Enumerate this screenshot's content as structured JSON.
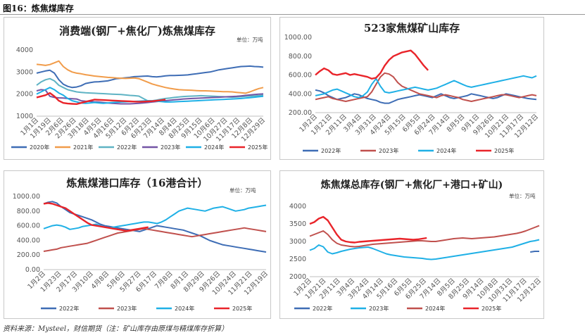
{
  "figure_title": "图16：炼焦煤库存",
  "source": "资料来源：Mysteel，财信期货（注：矿山库存由原煤与精煤库存折算）",
  "chart_data": [
    {
      "id": "p1",
      "type": "line",
      "title": "消费端(钢厂+焦化厂)炼焦煤库存",
      "unit": "单位：万吨",
      "ylim": [
        1000,
        4000
      ],
      "yticks": [
        1000,
        2000,
        3000,
        4000
      ],
      "ytick_labels": [
        "1000",
        "2000",
        "3000",
        "4000"
      ],
      "x_count": 52,
      "xtick_labels": [
        "1月1日",
        "1月19日",
        "2月6日",
        "2月26日",
        "3月18日",
        "4月5日",
        "4月16日",
        "5月12日",
        "6月2日",
        "6月23日",
        "7月14日",
        "8月4日",
        "8月25日",
        "9月15日",
        "10月6日",
        "10月27日",
        "11月17日",
        "12月8日",
        "12月29日"
      ],
      "series": [
        {
          "name": "2020年",
          "color": "#3e6db5",
          "values": [
            2950,
            3000,
            3050,
            3080,
            2950,
            2650,
            2450,
            2350,
            2300,
            2320,
            2380,
            2480,
            2520,
            2550,
            2560,
            2580,
            2600,
            2650,
            2700,
            2720,
            2740,
            2760,
            2790,
            2800,
            2810,
            2820,
            2790,
            2780,
            2800,
            2830,
            2840,
            2840,
            2850,
            2860,
            2870,
            2900,
            2920,
            2950,
            2980,
            3000,
            3050,
            3100,
            3130,
            3160,
            3190,
            3220,
            3250,
            3260,
            3270,
            3250,
            3240,
            3220
          ]
        },
        {
          "name": "2021年",
          "color": "#f19c4a",
          "values": [
            3350,
            3330,
            3300,
            3340,
            3420,
            3500,
            3250,
            3100,
            3000,
            2950,
            2920,
            2880,
            2850,
            2820,
            2800,
            2780,
            2760,
            2750,
            2730,
            2720,
            2710,
            2720,
            2730,
            2700,
            2620,
            2540,
            2460,
            2400,
            2350,
            2300,
            2260,
            2230,
            2200,
            2190,
            2180,
            2170,
            2160,
            2150,
            2150,
            2140,
            2130,
            2120,
            2110,
            2110,
            2100,
            2080,
            2060,
            2040,
            2100,
            2180,
            2250,
            2300
          ]
        },
        {
          "name": "2022年",
          "color": "#5fb3c4",
          "values": [
            2400,
            2550,
            2650,
            2700,
            2600,
            2400,
            2300,
            2200,
            2150,
            2100,
            2080,
            2060,
            2050,
            2040,
            2030,
            2020,
            2010,
            2000,
            1990,
            1980,
            1960,
            1940,
            1930,
            1910,
            1800,
            1700,
            1700,
            1730,
            1770,
            1800,
            1820,
            1850,
            1870,
            1890,
            1900,
            1910,
            1920,
            1930,
            1920,
            1910,
            1900,
            1890,
            1880,
            1870,
            1860,
            1870,
            1880,
            1900,
            1910,
            1920,
            1930,
            1950
          ]
        },
        {
          "name": "2023年",
          "color": "#7455a5",
          "values": [
            2150,
            2200,
            2180,
            1900,
            1850,
            1830,
            1820,
            1800,
            1790,
            1780,
            1700,
            1680,
            1670,
            1650,
            1640,
            1620,
            1600,
            1580,
            1570,
            1560,
            1560,
            1560,
            1570,
            1580,
            1600,
            1620,
            1640,
            1660,
            1680,
            1700,
            1720,
            1740,
            1760,
            1780,
            1790,
            1800,
            1810,
            1820,
            1830,
            1840,
            1850,
            1860,
            1870,
            1880,
            1890,
            1900,
            1920,
            1940,
            1960,
            1980,
            2000,
            2010
          ]
        },
        {
          "name": "2024年",
          "color": "#1fb0e6",
          "values": [
            2000,
            2100,
            2200,
            2300,
            2200,
            2050,
            1950,
            1800,
            1700,
            1650,
            1600,
            1580,
            1600,
            1620,
            1600,
            1580,
            1600,
            1620,
            1630,
            1640,
            1650,
            1660,
            1670,
            1680,
            1690,
            1700,
            1700,
            1680,
            1660,
            1640,
            1640,
            1650,
            1660,
            1670,
            1680,
            1690,
            1700,
            1710,
            1720,
            1730,
            1740,
            1750,
            1760,
            1770,
            1780,
            1790,
            1800,
            1820,
            1840,
            1860,
            1880,
            1900
          ]
        },
        {
          "name": "2025年",
          "color": "#e9242a",
          "values": [
            1850,
            1900,
            1950,
            2050,
            1900,
            1700,
            1600,
            1570,
            1560,
            1550,
            1600,
            1650,
            1700,
            1750,
            1740,
            1730,
            1720,
            1710,
            1700,
            1690,
            1680,
            1670,
            1660,
            1650,
            1660,
            1670,
            1680,
            1700,
            1720,
            1750
          ]
        }
      ]
    },
    {
      "id": "p2",
      "type": "line",
      "title": "523家焦煤矿山库存",
      "unit": "单位：万吨",
      "ylim": [
        200,
        1000
      ],
      "yticks": [
        200,
        400,
        600,
        800,
        1000
      ],
      "ytick_labels": [
        "200.00",
        "400.00",
        "600.00",
        "800.00",
        "1000.00"
      ],
      "x_count": 52,
      "xtick_labels": [
        "1月2日",
        "1月21日",
        "2月11日",
        "3月4日",
        "3月31日",
        "4月24日",
        "5月15日",
        "6月5日",
        "6月24日",
        "7月14日",
        "8月5日",
        "9月1日",
        "9月26日",
        "10月21日",
        "11月17日",
        "12月12日"
      ],
      "series": [
        {
          "name": "2022年",
          "color": "#3e6db5",
          "values": [
            440,
            430,
            410,
            380,
            360,
            340,
            350,
            360,
            380,
            400,
            390,
            370,
            350,
            340,
            330,
            310,
            300,
            300,
            320,
            340,
            350,
            360,
            370,
            380,
            390,
            380,
            370,
            360,
            380,
            400,
            380,
            360,
            350,
            360,
            370,
            380,
            400,
            390,
            380,
            370,
            360,
            350,
            360,
            380,
            400,
            390,
            380,
            370,
            360,
            350,
            345,
            340
          ]
        },
        {
          "name": "2023年",
          "color": "#c0504d",
          "values": [
            340,
            350,
            360,
            370,
            350,
            340,
            330,
            320,
            330,
            340,
            350,
            360,
            370,
            420,
            500,
            580,
            620,
            610,
            580,
            520,
            480,
            460,
            440,
            420,
            400,
            390,
            380,
            370,
            360,
            380,
            390,
            380,
            370,
            360,
            340,
            330,
            320,
            330,
            340,
            350,
            360,
            370,
            380,
            390,
            390,
            380,
            370,
            360,
            370,
            380,
            390,
            380
          ]
        },
        {
          "name": "2024年",
          "color": "#1fb0e6",
          "values": [
            380,
            390,
            400,
            420,
            440,
            450,
            430,
            410,
            390,
            370,
            360,
            380,
            420,
            500,
            560,
            480,
            420,
            410,
            420,
            430,
            440,
            450,
            460,
            470,
            460,
            450,
            440,
            450,
            460,
            480,
            500,
            520,
            540,
            520,
            500,
            480,
            470,
            480,
            490,
            500,
            510,
            520,
            530,
            540,
            550,
            560,
            570,
            580,
            590,
            580,
            570,
            590
          ]
        },
        {
          "name": "2025年",
          "color": "#e9242a",
          "values": [
            600,
            640,
            670,
            650,
            610,
            600,
            610,
            620,
            600,
            610,
            600,
            590,
            580,
            560,
            570,
            620,
            700,
            760,
            800,
            820,
            840,
            850,
            860,
            820,
            760,
            700,
            650
          ]
        }
      ]
    },
    {
      "id": "p3",
      "type": "line",
      "title": "炼焦煤港口库存（16港合计）",
      "unit": "单位：万吨",
      "ylim": [
        0,
        1000
      ],
      "yticks": [
        0,
        200,
        400,
        600,
        800,
        1000
      ],
      "ytick_labels": [
        "0.00",
        "200.00",
        "400.00",
        "600.00",
        "800.00",
        "1000.00"
      ],
      "x_count": 52,
      "xtick_labels": [
        "1月2日",
        "1月23日",
        "2月17日",
        "3月10日",
        "4月8日",
        "5月6日",
        "5月27日",
        "6月17日",
        "7月8日",
        "8月1日",
        "8月29日",
        "9月26日",
        "10月24日",
        "11月21日",
        "12月19日"
      ],
      "series": [
        {
          "name": "2022年",
          "color": "#3e6db5",
          "values": [
            900,
            920,
            930,
            910,
            860,
            820,
            780,
            760,
            740,
            720,
            700,
            680,
            650,
            620,
            600,
            590,
            580,
            570,
            560,
            550,
            540,
            530,
            520,
            540,
            560,
            580,
            600,
            590,
            580,
            570,
            560,
            550,
            540,
            520,
            500,
            480,
            460,
            430,
            400,
            380,
            360,
            340,
            330,
            320,
            310,
            300,
            290,
            280,
            270,
            260,
            250,
            240
          ]
        },
        {
          "name": "2023年",
          "color": "#c0504d",
          "values": [
            250,
            260,
            270,
            280,
            300,
            310,
            320,
            330,
            340,
            350,
            360,
            380,
            400,
            420,
            440,
            460,
            480,
            500,
            510,
            520,
            530,
            540,
            550,
            560,
            550,
            540,
            530,
            520,
            510,
            500,
            490,
            480,
            470,
            460,
            450,
            460,
            470,
            480,
            490,
            500,
            510,
            520,
            530,
            540,
            550,
            560,
            570,
            560,
            550,
            540,
            530,
            520
          ]
        },
        {
          "name": "2024年",
          "color": "#1fb0e6",
          "values": [
            560,
            580,
            600,
            610,
            600,
            580,
            550,
            560,
            570,
            590,
            600,
            610,
            620,
            600,
            580,
            570,
            580,
            590,
            600,
            610,
            620,
            630,
            640,
            650,
            650,
            640,
            630,
            650,
            680,
            720,
            760,
            800,
            820,
            840,
            830,
            820,
            810,
            800,
            820,
            840,
            850,
            860,
            840,
            820,
            800,
            810,
            820,
            840,
            850,
            860,
            870,
            880
          ]
        },
        {
          "name": "2025年",
          "color": "#e9242a",
          "values": [
            900,
            910,
            900,
            880,
            860,
            840,
            800,
            760,
            720,
            680,
            640,
            610,
            600,
            590,
            580,
            570,
            560,
            550,
            540,
            530,
            540,
            550,
            560,
            570,
            580
          ]
        }
      ]
    },
    {
      "id": "p4",
      "type": "line",
      "title": "炼焦煤总库存(钢厂+焦化厂+港口+矿山)",
      "unit": "单位：万吨",
      "ylim": [
        2000,
        4000
      ],
      "yticks": [
        2000,
        2500,
        3000,
        3500,
        4000
      ],
      "ytick_labels": [
        "2000",
        "2500",
        "3000",
        "3500",
        "4000"
      ],
      "x_count": 52,
      "xtick_labels": [
        "1月2日",
        "1月21日",
        "2月11日",
        "3月4日",
        "3月24日",
        "4月14日",
        "5月16日",
        "6月5日",
        "6月25日",
        "7月14日",
        "8月5日",
        "8月25日",
        "9月14日",
        "10月8日",
        "10月31日",
        "11月17日",
        "12月12日"
      ],
      "series": [
        {
          "name": "2022年",
          "color": "#3e6db5",
          "values": [
            null,
            null,
            null,
            null,
            null,
            null,
            null,
            null,
            null,
            null,
            null,
            null,
            null,
            null,
            null,
            null,
            null,
            null,
            null,
            null,
            null,
            null,
            null,
            null,
            null,
            null,
            null,
            null,
            null,
            null,
            null,
            null,
            null,
            null,
            null,
            null,
            null,
            null,
            null,
            null,
            null,
            null,
            null,
            null,
            null,
            null,
            null,
            null,
            null,
            2700,
            2720,
            2720
          ]
        },
        {
          "name": "2023年",
          "color": "#1fb0e6",
          "values": [
            2750,
            2800,
            2900,
            2850,
            2700,
            2650,
            2680,
            2720,
            2750,
            2780,
            2800,
            2820,
            2830,
            2840,
            2800,
            2750,
            2700,
            2650,
            2620,
            2600,
            2580,
            2560,
            2550,
            2540,
            2530,
            2520,
            2500,
            2490,
            2500,
            2520,
            2540,
            2560,
            2580,
            2600,
            2620,
            2640,
            2660,
            2680,
            2700,
            2720,
            2740,
            2760,
            2780,
            2800,
            2820,
            2840,
            2880,
            2920,
            2960,
            3000,
            3020,
            3050
          ]
        },
        {
          "name": "2024年",
          "color": "#c0504d",
          "values": [
            3150,
            3200,
            3250,
            3300,
            3200,
            3050,
            2950,
            2900,
            2880,
            2860,
            2850,
            2860,
            2880,
            2900,
            2920,
            2930,
            2940,
            2950,
            2960,
            2970,
            2980,
            2990,
            3000,
            3010,
            3020,
            3020,
            3010,
            3000,
            3000,
            3020,
            3040,
            3060,
            3080,
            3090,
            3100,
            3090,
            3080,
            3090,
            3100,
            3110,
            3120,
            3130,
            3150,
            3170,
            3190,
            3210,
            3230,
            3260,
            3300,
            3350,
            3400,
            3450
          ]
        },
        {
          "name": "2025年",
          "color": "#e9242a",
          "values": [
            3500,
            3550,
            3650,
            3700,
            3600,
            3400,
            3200,
            3050,
            3000,
            2980,
            2970,
            2990,
            3000,
            3010,
            3020,
            3030,
            3040,
            3050,
            3060,
            3070,
            3080,
            3070,
            3060,
            3050,
            3060,
            3080,
            3100
          ]
        }
      ]
    }
  ]
}
